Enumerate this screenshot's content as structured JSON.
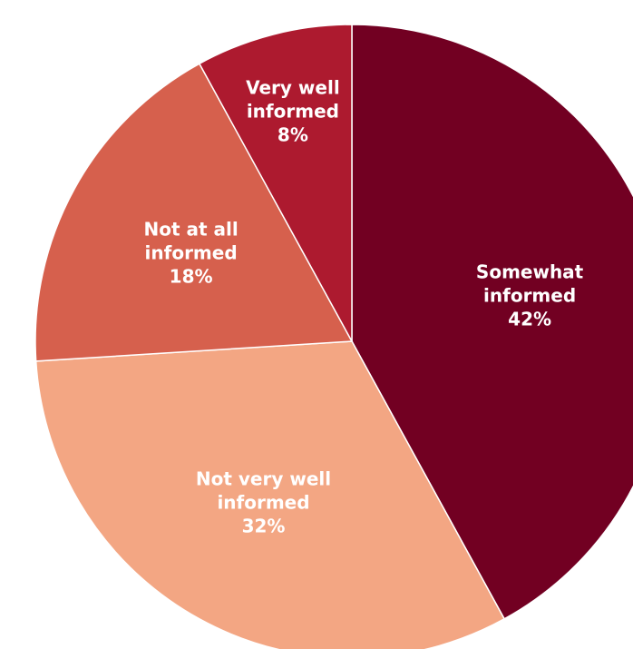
{
  "chart_data": {
    "type": "pie",
    "slices": [
      {
        "label_lines": [
          "Somewhat",
          "informed"
        ],
        "value": 42,
        "value_label": "42%",
        "color": "#720022"
      },
      {
        "label_lines": [
          "Not very well",
          "informed"
        ],
        "value": 32,
        "value_label": "32%",
        "color": "#F3A683"
      },
      {
        "label_lines": [
          "Not at all",
          "informed"
        ],
        "value": 18,
        "value_label": "18%",
        "color": "#D6604D"
      },
      {
        "label_lines": [
          "Very well",
          "informed"
        ],
        "value": 8,
        "value_label": "8%",
        "color": "#AD1A2F"
      }
    ],
    "start_angle_deg": 0,
    "direction": "clockwise",
    "title": "",
    "legend": "none"
  }
}
